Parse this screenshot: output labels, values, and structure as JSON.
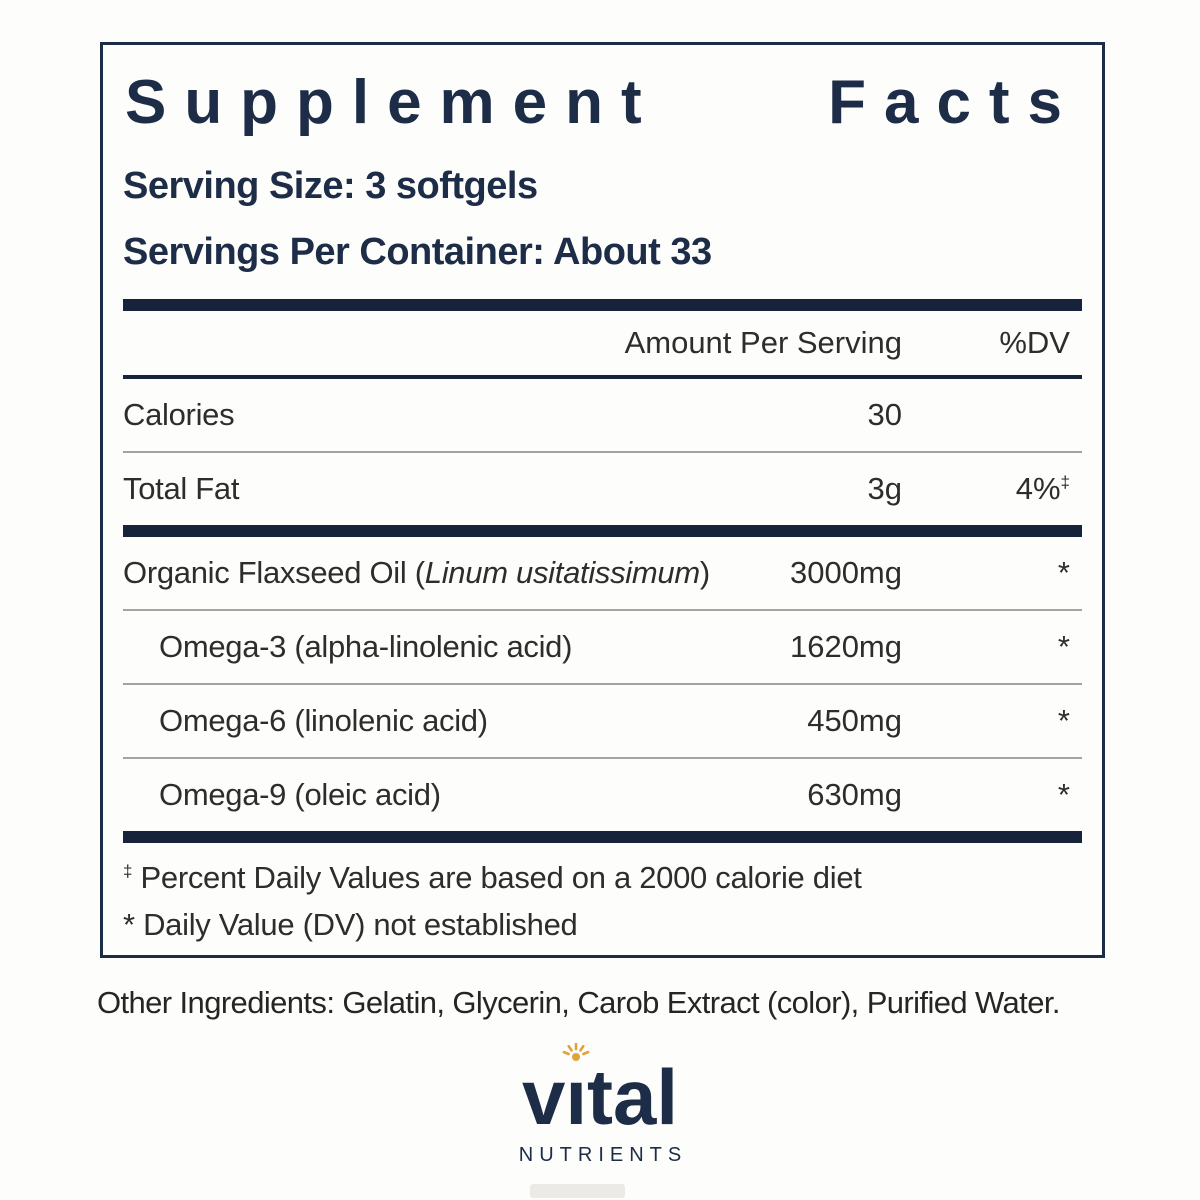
{
  "panel": {
    "title": "Supplement Facts",
    "title_words": [
      "Supplement",
      "Facts"
    ],
    "serving_size": "Serving Size: 3 softgels",
    "servings_per_container": "Servings Per Container: About 33",
    "header": {
      "amount": "Amount Per Serving",
      "dv": "%DV"
    },
    "rows": [
      {
        "name_parts": [
          {
            "text": "Calories",
            "italic": false
          }
        ],
        "indent": false,
        "amount": "30",
        "dv": "",
        "dv_sup": "",
        "sep_after": "thin"
      },
      {
        "name_parts": [
          {
            "text": "Total Fat",
            "italic": false
          }
        ],
        "indent": false,
        "amount": "3g",
        "dv": "4%",
        "dv_sup": "‡",
        "sep_after": "thick"
      },
      {
        "name_parts": [
          {
            "text": "Organic Flaxseed Oil (",
            "italic": false
          },
          {
            "text": "Linum usitatissimum",
            "italic": true
          },
          {
            "text": ")",
            "italic": false
          }
        ],
        "indent": false,
        "amount": "3000mg",
        "dv": "*",
        "dv_sup": "",
        "sep_after": "thin"
      },
      {
        "name_parts": [
          {
            "text": "Omega-3 (alpha-linolenic acid)",
            "italic": false
          }
        ],
        "indent": true,
        "amount": "1620mg",
        "dv": "*",
        "dv_sup": "",
        "sep_after": "thin"
      },
      {
        "name_parts": [
          {
            "text": "Omega-6 (linolenic acid)",
            "italic": false
          }
        ],
        "indent": true,
        "amount": "450mg",
        "dv": "*",
        "dv_sup": "",
        "sep_after": "thin"
      },
      {
        "name_parts": [
          {
            "text": "Omega-9 (oleic acid)",
            "italic": false
          }
        ],
        "indent": true,
        "amount": "630mg",
        "dv": "*",
        "dv_sup": "",
        "sep_after": "thick"
      }
    ],
    "footnotes": [
      {
        "mark": "‡",
        "superscript": true,
        "text": "Percent Daily Values are based on a 2000 calorie diet"
      },
      {
        "mark": "*",
        "superscript": false,
        "text": "Daily Value (DV) not established"
      }
    ]
  },
  "other_ingredients": "Other Ingredients: Gelatin, Glycerin, Carob Extract (color), Purified Water.",
  "logo": {
    "brand": "vital",
    "tagline": "NUTRIENTS"
  },
  "colors": {
    "navy": "#1d2c47",
    "bar": "#16233a",
    "text": "#2d2d2d",
    "separator": "#a3a3a3",
    "gold": "#dfa33c",
    "background": "#fdfdfb"
  }
}
